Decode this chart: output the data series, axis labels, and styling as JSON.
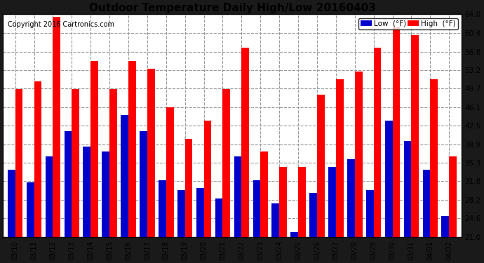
{
  "title": "Outdoor Temperature Daily High/Low 20160403",
  "copyright": "Copyright 2016 Cartronics.com",
  "ylabel_right_ticks": [
    21.0,
    24.6,
    28.2,
    31.8,
    35.3,
    38.9,
    42.5,
    46.1,
    49.7,
    53.2,
    56.8,
    60.4,
    64.0
  ],
  "ylim": [
    21.0,
    64.0
  ],
  "dates": [
    "03/10",
    "03/11",
    "03/12",
    "03/13",
    "03/14",
    "03/15",
    "03/16",
    "03/17",
    "03/18",
    "03/19",
    "03/20",
    "03/21",
    "03/22",
    "03/23",
    "03/24",
    "03/25",
    "03/26",
    "03/27",
    "03/28",
    "03/29",
    "03/30",
    "03/31",
    "04/01",
    "04/02"
  ],
  "highs": [
    49.5,
    51.0,
    63.5,
    49.5,
    55.0,
    49.5,
    55.0,
    53.5,
    46.0,
    40.0,
    43.5,
    49.5,
    57.5,
    37.5,
    34.5,
    34.5,
    48.5,
    51.5,
    53.0,
    57.5,
    61.5,
    60.0,
    51.5,
    36.5
  ],
  "lows": [
    34.0,
    31.5,
    36.5,
    41.5,
    38.5,
    37.5,
    44.5,
    41.5,
    32.0,
    30.0,
    30.5,
    28.5,
    36.5,
    32.0,
    27.5,
    22.0,
    29.5,
    34.5,
    36.0,
    30.0,
    43.5,
    39.5,
    34.0,
    25.0
  ],
  "high_color": "#ff0000",
  "low_color": "#0000cc",
  "plot_bg_color": "#ffffff",
  "fig_bg_color": "#1a1a1a",
  "grid_color": "#999999",
  "title_fontsize": 11,
  "copyright_fontsize": 7,
  "bar_width": 0.4,
  "legend_low_label": "Low  (°F)",
  "legend_high_label": "High  (°F)"
}
